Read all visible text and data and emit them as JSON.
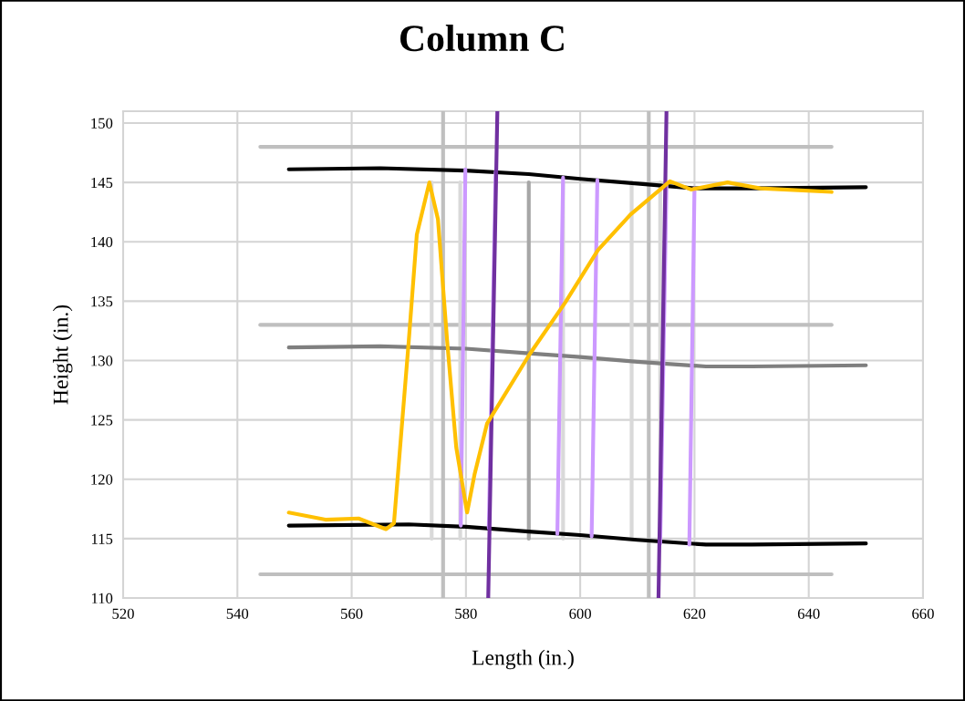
{
  "chart_data": {
    "type": "line",
    "title": "Column C",
    "xlabel": "Length (in.)",
    "ylabel": "Height (in.)",
    "xlim": [
      520,
      660
    ],
    "xticks": [
      520,
      540,
      560,
      580,
      600,
      620,
      640,
      660
    ],
    "ylim": [
      110,
      151
    ],
    "yticks": [
      110,
      115,
      120,
      125,
      130,
      135,
      140,
      145,
      150
    ],
    "grid": true,
    "legend": false,
    "marker": "none",
    "line_style": "solid",
    "series": [
      {
        "color": "#bfbfbf",
        "x": [
          544,
          644
        ],
        "values": [
          148,
          148
        ]
      },
      {
        "color": "#bfbfbf",
        "x": [
          544,
          644
        ],
        "values": [
          133,
          133
        ]
      },
      {
        "color": "#bfbfbf",
        "x": [
          544,
          644
        ],
        "values": [
          112,
          112
        ]
      },
      {
        "color": "#bfbfbf",
        "x": [
          576,
          576
        ],
        "values": [
          110,
          151
        ]
      },
      {
        "color": "#bfbfbf",
        "x": [
          612,
          612
        ],
        "values": [
          110,
          151
        ]
      },
      {
        "color": "#d9d9d9",
        "x": [
          574,
          574
        ],
        "values": [
          115,
          145
        ]
      },
      {
        "color": "#d9d9d9",
        "x": [
          579,
          579
        ],
        "values": [
          115,
          145
        ]
      },
      {
        "color": "#d9d9d9",
        "x": [
          597,
          597
        ],
        "values": [
          115,
          145
        ]
      },
      {
        "color": "#d9d9d9",
        "x": [
          609,
          609
        ],
        "values": [
          115,
          145
        ]
      },
      {
        "color": "#d9d9d9",
        "x": [
          614,
          614
        ],
        "values": [
          115,
          145
        ]
      },
      {
        "color": "#a6a6a6",
        "x": [
          591,
          591
        ],
        "values": [
          115,
          145
        ]
      },
      {
        "color": "#000000",
        "x": [
          549,
          565,
          580,
          591,
          600,
          610,
          620,
          630,
          650
        ],
        "values": [
          146.1,
          146.2,
          146.0,
          145.7,
          145.3,
          144.9,
          144.5,
          144.5,
          144.6
        ]
      },
      {
        "color": "#7f7f7f",
        "x": [
          549,
          565,
          580,
          591,
          600,
          610,
          622,
          630,
          650
        ],
        "values": [
          131.1,
          131.2,
          131.0,
          130.6,
          130.3,
          129.9,
          129.5,
          129.5,
          129.6
        ]
      },
      {
        "color": "#000000",
        "x": [
          549,
          570,
          580,
          591,
          600,
          610,
          622,
          630,
          650
        ],
        "values": [
          116.1,
          116.2,
          116.0,
          115.6,
          115.3,
          114.9,
          114.5,
          114.5,
          114.6
        ]
      },
      {
        "color": "#cc99ff",
        "x": [
          579.9,
          579.1
        ],
        "values": [
          146.1,
          116.1
        ]
      },
      {
        "color": "#cc99ff",
        "x": [
          585.2,
          584.0
        ],
        "values": [
          145.9,
          115.9
        ]
      },
      {
        "color": "#cc99ff",
        "x": [
          597.0,
          596.0
        ],
        "values": [
          145.4,
          115.4
        ]
      },
      {
        "color": "#cc99ff",
        "x": [
          603.0,
          602.0
        ],
        "values": [
          145.2,
          115.2
        ]
      },
      {
        "color": "#cc99ff",
        "x": [
          615.1,
          614.0
        ],
        "values": [
          144.9,
          114.6
        ]
      },
      {
        "color": "#cc99ff",
        "x": [
          620.0,
          619.1
        ],
        "values": [
          144.5,
          114.5
        ]
      },
      {
        "color": "#7030a0",
        "x": [
          585.5,
          583.9
        ],
        "values": [
          151,
          110
        ]
      },
      {
        "color": "#7030a0",
        "x": [
          615.1,
          613.7
        ],
        "values": [
          151,
          110
        ]
      },
      {
        "color": "#ffc000",
        "x": [
          549.0,
          555.4,
          561.2,
          566.0,
          567.4,
          568.7,
          570.0,
          571.4,
          573.6,
          575.1,
          576.7,
          578.3,
          580.2,
          581.5,
          583.7,
          591.1,
          597.4,
          603.1,
          608.8,
          615.7,
          619.4,
          625.8,
          631.5,
          644.0
        ],
        "values": [
          117.2,
          116.6,
          116.7,
          115.8,
          116.3,
          124.0,
          131.7,
          140.6,
          145.0,
          141.9,
          131.7,
          122.7,
          117.2,
          120.4,
          124.7,
          130.5,
          134.9,
          139.3,
          142.3,
          145.1,
          144.4,
          145.0,
          144.5,
          144.2
        ]
      }
    ]
  }
}
